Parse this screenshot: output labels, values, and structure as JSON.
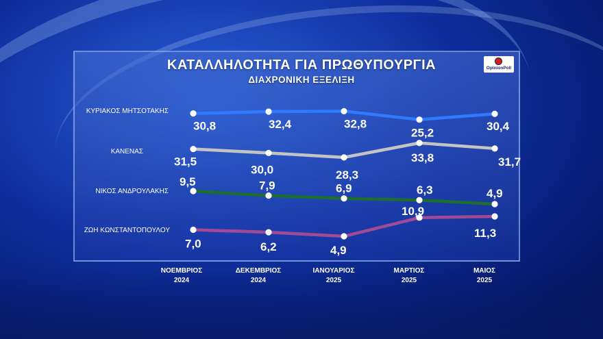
{
  "header": {
    "title": "ΚΑΤΑΛΛΗΛΟΤΗΤΑ ΓΙΑ ΠΡΩΘΥΠΟΥΡΓΙΑ",
    "subtitle": "ΔΙΑΧΡΟΝΙΚΗ ΕΞΕΛΙΞΗ",
    "logo_text": "OpinionPoll"
  },
  "colors": {
    "blue": "#2f7bff",
    "gray": "#c4c4c4",
    "green": "#1d6e2e",
    "purple": "#a24a96",
    "logo_dot": "#d0202a"
  },
  "chart_data": {
    "type": "line",
    "title": "ΚΑΤΑΛΛΗΛΟΤΗΤΑ ΓΙΑ ΠΡΩΘΥΠΟΥΡΓΙΑ",
    "subtitle": "ΔΙΑΧΡΟΝΙΚΗ ΕΞΕΛΙΞΗ",
    "categories": [
      [
        "ΝΟΕΜΒΡΙΟΣ",
        "2024"
      ],
      [
        "ΔΕΚΕΜΒΡΙΟΣ",
        "2024"
      ],
      [
        "ΙΑΝΟΥΑΡΙΟΣ",
        "2025"
      ],
      [
        "ΜΑΡΤΙΟΣ",
        "2025"
      ],
      [
        "ΜΑΙΟΣ",
        "2025"
      ]
    ],
    "value_labels_note": "",
    "series": [
      {
        "name": "ΚΥΡΙΑΚΟΣ ΜΗΤΣΟΤΑΚΗΣ",
        "color": "#2f7bff",
        "values": [
          30.8,
          32.4,
          32.8,
          25.2,
          30.4
        ],
        "labels": [
          "30,8",
          "32,4",
          "32,8",
          "25,2",
          "30,4"
        ]
      },
      {
        "name": "ΚΑΝΕΝΑΣ",
        "color": "#c4c4c4",
        "values": [
          31.5,
          30.0,
          28.3,
          33.8,
          31.7
        ],
        "labels": [
          "31,5",
          "30,0",
          "28,3",
          "33,8",
          "31,7"
        ]
      },
      {
        "name": "ΝΙΚΟΣ ΑΝΔΡΟΥΛΑΚΗΣ",
        "color": "#1d6e2e",
        "values": [
          9.5,
          7.9,
          6.9,
          6.3,
          4.9
        ],
        "labels": [
          "9,5",
          "7,9",
          "6,9",
          "6,3",
          "4,9"
        ]
      },
      {
        "name": "ΖΩΗ ΚΩΝΣΤΑΝΤΟΠΟΥΛΟΥ",
        "color": "#a24a96",
        "values": [
          7.0,
          6.2,
          4.9,
          10.9,
          11.3
        ],
        "labels": [
          "7,0",
          "6,2",
          "4,9",
          "10,9",
          "11,3"
        ]
      }
    ],
    "legend": "inline-left",
    "grid": false
  }
}
